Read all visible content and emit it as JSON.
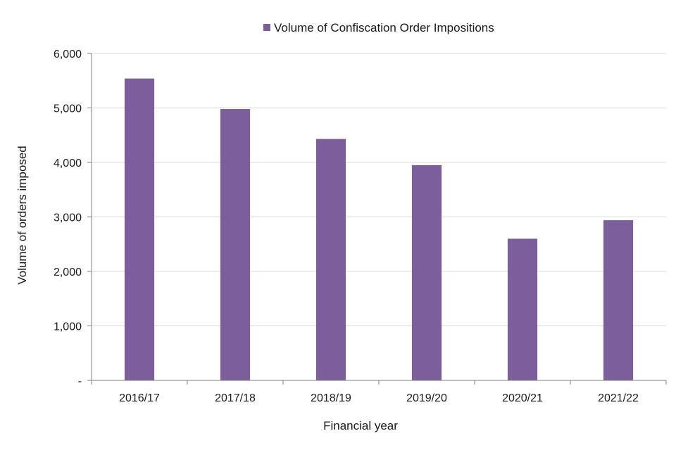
{
  "chart_data": {
    "type": "bar",
    "categories": [
      "2016/17",
      "2017/18",
      "2018/19",
      "2019/20",
      "2020/21",
      "2021/22"
    ],
    "series": [
      {
        "name": "Volume of Confiscation Order Impositions",
        "values": [
          5540,
          4980,
          4430,
          3950,
          2600,
          2940
        ],
        "color": "#7b5e9b"
      }
    ],
    "y_ticks": [
      "-",
      "1,000",
      "2,000",
      "3,000",
      "4,000",
      "5,000",
      "6,000"
    ],
    "ylim": [
      0,
      6000
    ],
    "xlabel": "Financial year",
    "ylabel": "Volume of orders imposed",
    "grid": true,
    "legend": "top-center",
    "colors": {
      "bar": "#7b5e9b",
      "grid": "#d9d9d9",
      "axis": "#808080"
    }
  }
}
